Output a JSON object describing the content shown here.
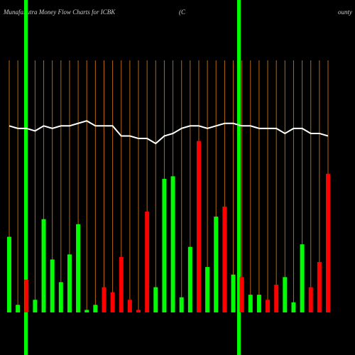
{
  "chart_data": {
    "type": "bar",
    "title": "MunafaSutra  Money Flow  Charts for ICBK",
    "subtitle": "(C",
    "annotation": "ounty",
    "ylim": [
      0,
      100
    ],
    "series": [
      {
        "values": [
          30,
          3,
          13,
          5,
          37,
          21,
          12,
          23,
          35,
          1,
          3,
          10,
          8,
          22,
          5,
          1,
          40,
          10,
          53,
          54,
          6,
          26,
          68,
          18,
          38,
          42,
          15,
          14,
          7,
          7,
          5,
          11,
          14,
          4,
          27,
          10,
          20,
          55
        ],
        "colors": [
          "#00ff00",
          "#00ff00",
          "#ff0000",
          "#00ff00",
          "#00ff00",
          "#00ff00",
          "#00ff00",
          "#00ff00",
          "#00ff00",
          "#00ff00",
          "#00ff00",
          "#ff0000",
          "#ff0000",
          "#ff0000",
          "#ff0000",
          "#ff0000",
          "#ff0000",
          "#00ff00",
          "#00ff00",
          "#00ff00",
          "#00ff00",
          "#00ff00",
          "#ff0000",
          "#00ff00",
          "#00ff00",
          "#ff0000",
          "#00ff00",
          "#ff0000",
          "#00ff00",
          "#00ff00",
          "#ff0000",
          "#ff0000",
          "#00ff00",
          "#00ff00",
          "#00ff00",
          "#ff0000",
          "#ff0000",
          "#ff0000"
        ]
      },
      {
        "color": "#ffffff",
        "values": [
          74,
          73,
          73,
          72,
          74,
          73,
          74,
          74,
          75,
          76,
          74,
          74,
          74,
          70,
          70,
          69,
          69,
          67,
          70,
          71,
          73,
          74,
          74,
          73,
          74,
          75,
          75,
          74,
          74,
          73,
          73,
          73,
          71,
          73,
          73,
          71,
          71,
          70
        ]
      }
    ]
  }
}
